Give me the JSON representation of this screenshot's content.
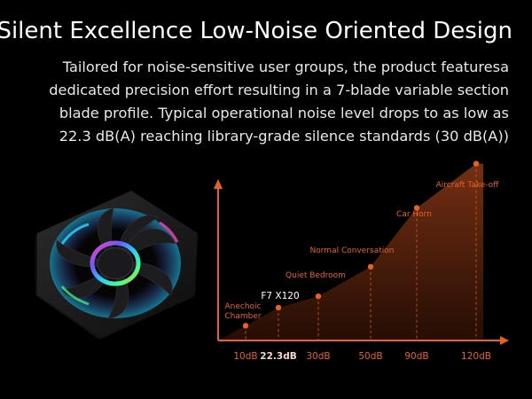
{
  "heading": "Silent Excellence Low-Noise Oriented Design",
  "description": [
    "Tailored for noise-sensitive user groups, the product featuresa",
    "dedicated precision effort resulting in a 7-blade variable section",
    "blade profile. Typical operational noise level drops to as low as",
    "22.3 dB(A) reaching library-grade silence standards (30 dB(A))"
  ],
  "colors": {
    "accent": "#e4622a",
    "text": "#ffffff",
    "background": "#000000"
  },
  "chart_data": {
    "type": "area",
    "series": [
      {
        "values": [
          10,
          22.3,
          30,
          50,
          90,
          120
        ]
      }
    ],
    "x": [
      "10dB",
      "22.3dB",
      "30dB",
      "50dB",
      "90dB",
      "120dB"
    ],
    "point_labels": [
      "Anechoic\nChamber",
      "F7 X120",
      "Quiet Bedroom",
      "Normal Conversation",
      "Car Horn",
      "Aircraft Take-off"
    ],
    "highlight": "22.3dB",
    "title": "",
    "xlabel": "",
    "ylabel": "",
    "ylim": [
      0,
      130
    ],
    "grid": false
  }
}
